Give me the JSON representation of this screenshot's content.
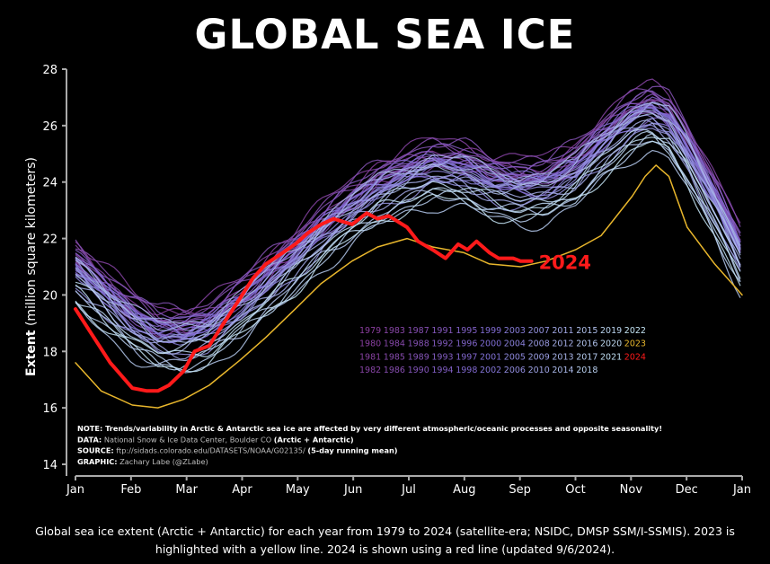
{
  "title": "GLOBAL SEA ICE",
  "caption": "Global sea ice extent (Arctic + Antarctic) for each year from 1979 to 2024 (satellite-era; NSIDC, DMSP SSM/I-SSMIS). 2023 is highlighted with a yellow line. 2024 is shown using a red line (updated 9/6/2024).",
  "notes": {
    "note_label": "NOTE:",
    "note_text": " Trends/variability in Arctic & Antarctic sea ice are affected by very different atmospheric/oceanic processes and opposite seasonality!",
    "data_label": "DATA:",
    "data_text": " National Snow & Ice Data Center, Boulder CO ",
    "data_bold": "(Arctic + Antarctic)",
    "source_label": "SOURCE:",
    "source_text": " ftp://sidads.colorado.edu/DATASETS/NOAA/G02135/ ",
    "source_bold": "(5-day running mean)",
    "graphic_label": "GRAPHIC:",
    "graphic_text": " Zachary Labe (@ZLabe)"
  },
  "colors": {
    "background": "#000000",
    "axis": "#aaaaaa",
    "highlight_2023": "#e8b62c",
    "highlight_2024": "#ff1a1a",
    "early_years": "#8a3d9e",
    "middle_years": "#7f6ed6",
    "late_years": "#c4e4f4"
  },
  "chart_data": {
    "type": "line",
    "title": "GLOBAL SEA ICE",
    "ylabel_bold": "Extent",
    "ylabel_rest": " (million square kilometers)",
    "xlabel": "",
    "ylim": [
      14,
      28
    ],
    "yticks": [
      14,
      16,
      18,
      20,
      22,
      24,
      26,
      28
    ],
    "x_ticks": [
      "Jan",
      "Feb",
      "Mar",
      "Apr",
      "May",
      "Jun",
      "Jul",
      "Aug",
      "Sep",
      "Oct",
      "Nov",
      "Dec",
      "Jan"
    ],
    "grid": false,
    "x_days": [
      1,
      15,
      32,
      46,
      60,
      74,
      91,
      105,
      121,
      135,
      152,
      166,
      182,
      196,
      213,
      227,
      244,
      258,
      274,
      288,
      305,
      315,
      325,
      335,
      350,
      365
    ],
    "climatology": [
      20.6,
      19.8,
      18.8,
      18.3,
      18.2,
      18.5,
      19.3,
      20.1,
      21.0,
      21.9,
      22.8,
      23.4,
      23.9,
      24.2,
      24.1,
      23.7,
      23.5,
      23.6,
      24.1,
      25.0,
      25.9,
      26.2,
      25.8,
      24.8,
      23.0,
      21.0
    ],
    "year_offsets": [
      {
        "year": "1979",
        "offset": 0.5
      },
      {
        "year": "1980",
        "offset": 1.0
      },
      {
        "year": "1981",
        "offset": 0.6
      },
      {
        "year": "1982",
        "offset": 1.3
      },
      {
        "year": "1983",
        "offset": 0.8
      },
      {
        "year": "1984",
        "offset": 0.5
      },
      {
        "year": "1985",
        "offset": 0.9
      },
      {
        "year": "1986",
        "offset": 1.1
      },
      {
        "year": "1987",
        "offset": 0.6
      },
      {
        "year": "1988",
        "offset": 1.2
      },
      {
        "year": "1989",
        "offset": 0.7
      },
      {
        "year": "1990",
        "offset": 0.4
      },
      {
        "year": "1991",
        "offset": 0.6
      },
      {
        "year": "1992",
        "offset": 1.0
      },
      {
        "year": "1993",
        "offset": 0.3
      },
      {
        "year": "1994",
        "offset": 0.8
      },
      {
        "year": "1995",
        "offset": 0.2
      },
      {
        "year": "1996",
        "offset": 0.6
      },
      {
        "year": "1997",
        "offset": 0.4
      },
      {
        "year": "1998",
        "offset": 0.7
      },
      {
        "year": "1999",
        "offset": 0.5
      },
      {
        "year": "2000",
        "offset": 0.4
      },
      {
        "year": "2001",
        "offset": 0.6
      },
      {
        "year": "2002",
        "offset": 0.1
      },
      {
        "year": "2003",
        "offset": 0.5
      },
      {
        "year": "2004",
        "offset": 0.3
      },
      {
        "year": "2005",
        "offset": 0.2
      },
      {
        "year": "2006",
        "offset": 0.0
      },
      {
        "year": "2007",
        "offset": -0.3
      },
      {
        "year": "2008",
        "offset": 0.4
      },
      {
        "year": "2009",
        "offset": 0.1
      },
      {
        "year": "2010",
        "offset": 0.6
      },
      {
        "year": "2011",
        "offset": -0.2
      },
      {
        "year": "2012",
        "offset": -0.1
      },
      {
        "year": "2013",
        "offset": 0.5
      },
      {
        "year": "2014",
        "offset": 0.7
      },
      {
        "year": "2015",
        "offset": 0.2
      },
      {
        "year": "2016",
        "offset": -0.6
      },
      {
        "year": "2017",
        "offset": -1.0
      },
      {
        "year": "2018",
        "offset": -0.7
      },
      {
        "year": "2019",
        "offset": -0.6
      },
      {
        "year": "2020",
        "offset": -0.2
      },
      {
        "year": "2021",
        "offset": -0.4
      },
      {
        "year": "2022",
        "offset": -0.8
      }
    ],
    "series": [
      {
        "name": "2023",
        "x": [
          1,
          15,
          32,
          46,
          60,
          74,
          91,
          105,
          121,
          135,
          152,
          166,
          182,
          196,
          213,
          227,
          244,
          258,
          274,
          288,
          305,
          312,
          318,
          325,
          335,
          350,
          365
        ],
        "y": [
          17.6,
          16.6,
          16.1,
          16.0,
          16.3,
          16.8,
          17.7,
          18.5,
          19.5,
          20.4,
          21.2,
          21.7,
          22.0,
          21.7,
          21.5,
          21.1,
          21.0,
          21.2,
          21.6,
          22.1,
          23.5,
          24.2,
          24.6,
          24.2,
          22.4,
          21.1,
          20.0
        ]
      },
      {
        "name": "2024",
        "x": [
          1,
          10,
          20,
          32,
          40,
          46,
          52,
          60,
          66,
          74,
          80,
          91,
          98,
          105,
          112,
          121,
          128,
          135,
          142,
          152,
          160,
          166,
          172,
          182,
          188,
          196,
          203,
          210,
          215,
          220,
          227,
          232,
          240,
          244,
          250
        ],
        "y": [
          19.5,
          18.6,
          17.6,
          16.7,
          16.6,
          16.6,
          16.8,
          17.3,
          18.0,
          18.2,
          18.8,
          19.9,
          20.6,
          21.1,
          21.4,
          21.8,
          22.2,
          22.5,
          22.7,
          22.5,
          22.9,
          22.7,
          22.8,
          22.4,
          21.9,
          21.6,
          21.3,
          21.8,
          21.6,
          21.9,
          21.5,
          21.3,
          21.3,
          21.2,
          21.2
        ]
      }
    ],
    "series_label": "2024",
    "legend": {
      "placement": "bottom-right",
      "rows": [
        [
          "1979",
          "1983",
          "1987",
          "1991",
          "1995",
          "1999",
          "2003",
          "2007",
          "2011",
          "2015",
          "2019",
          "2022"
        ],
        [
          "1980",
          "1984",
          "1988",
          "1992",
          "1996",
          "2000",
          "2004",
          "2008",
          "2012",
          "2016",
          "2020",
          "2023"
        ],
        [
          "1981",
          "1985",
          "1989",
          "1993",
          "1997",
          "2001",
          "2005",
          "2009",
          "2013",
          "2017",
          "2021",
          "2024"
        ],
        [
          "1982",
          "1986",
          "1990",
          "1994",
          "1998",
          "2002",
          "2006",
          "2010",
          "2014",
          "2018"
        ]
      ]
    }
  }
}
